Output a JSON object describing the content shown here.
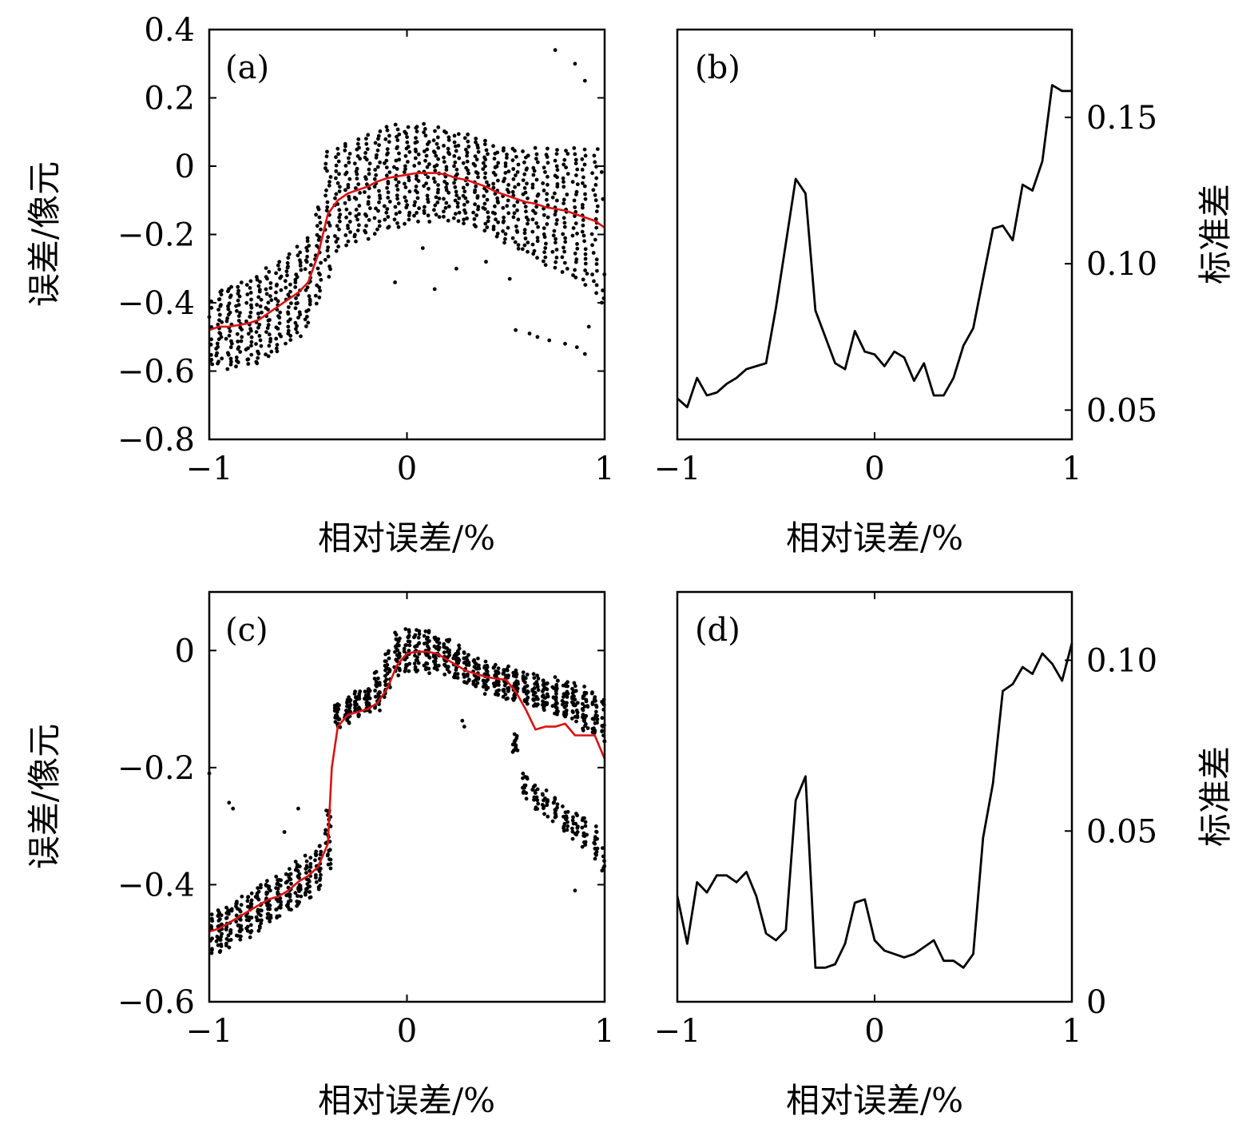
{
  "chart_data": [
    {
      "panel": "(a)",
      "type": "scatter",
      "xlabel": "相对误差/%",
      "ylabel": "误差/像元",
      "xlim": [
        -1,
        1
      ],
      "ylim": [
        -0.8,
        0.4
      ],
      "xticks": [
        -1,
        0,
        1
      ],
      "xtick_labels": [
        "−1",
        "0",
        "1"
      ],
      "yticks": [
        -0.8,
        -0.6,
        -0.4,
        -0.2,
        0,
        0.2,
        0.4
      ],
      "ytick_labels": [
        "−0.8",
        "−0.6",
        "−0.4",
        "−0.2",
        "0",
        "0.2",
        "0.4"
      ],
      "scatter_color": "#000000",
      "scatter_columns": {
        "x": [
          -1.0,
          -0.95,
          -0.9,
          -0.85,
          -0.8,
          -0.75,
          -0.7,
          -0.65,
          -0.6,
          -0.55,
          -0.5,
          -0.45,
          -0.4,
          -0.35,
          -0.3,
          -0.25,
          -0.2,
          -0.15,
          -0.1,
          -0.05,
          0.0,
          0.05,
          0.1,
          0.15,
          0.2,
          0.25,
          0.3,
          0.35,
          0.4,
          0.45,
          0.5,
          0.55,
          0.6,
          0.65,
          0.7,
          0.75,
          0.8,
          0.85,
          0.9,
          0.95,
          1.0
        ],
        "center": [
          -0.48,
          -0.47,
          -0.47,
          -0.465,
          -0.46,
          -0.45,
          -0.43,
          -0.41,
          -0.39,
          -0.37,
          -0.34,
          -0.26,
          -0.14,
          -0.1,
          -0.08,
          -0.07,
          -0.06,
          -0.045,
          -0.035,
          -0.03,
          -0.025,
          -0.02,
          -0.02,
          -0.02,
          -0.025,
          -0.035,
          -0.04,
          -0.05,
          -0.06,
          -0.075,
          -0.085,
          -0.095,
          -0.105,
          -0.11,
          -0.12,
          -0.125,
          -0.13,
          -0.14,
          -0.15,
          -0.16,
          -0.18
        ],
        "half_width": [
          0.11,
          0.11,
          0.12,
          0.12,
          0.12,
          0.13,
          0.13,
          0.13,
          0.13,
          0.13,
          0.13,
          0.14,
          0.18,
          0.15,
          0.15,
          0.15,
          0.15,
          0.15,
          0.15,
          0.15,
          0.14,
          0.14,
          0.14,
          0.13,
          0.13,
          0.13,
          0.13,
          0.13,
          0.13,
          0.13,
          0.14,
          0.15,
          0.15,
          0.16,
          0.17,
          0.17,
          0.18,
          0.19,
          0.2,
          0.21,
          0.22
        ]
      },
      "outliers": {
        "x": [
          -0.06,
          0.08,
          0.14,
          0.25,
          0.4,
          0.52,
          0.55,
          0.62,
          0.66,
          0.72,
          0.8,
          0.86,
          0.9,
          0.92,
          0.75,
          0.85,
          0.9
        ],
        "y": [
          -0.34,
          -0.24,
          -0.36,
          -0.3,
          -0.28,
          -0.33,
          -0.48,
          -0.49,
          -0.5,
          -0.51,
          -0.52,
          -0.53,
          -0.55,
          -0.47,
          0.34,
          0.3,
          0.25
        ]
      },
      "series": [
        {
          "name": "mean",
          "color": "#dd1111",
          "x": [
            -1.0,
            -0.95,
            -0.9,
            -0.85,
            -0.8,
            -0.75,
            -0.7,
            -0.65,
            -0.6,
            -0.55,
            -0.5,
            -0.45,
            -0.4,
            -0.35,
            -0.3,
            -0.25,
            -0.2,
            -0.15,
            -0.1,
            -0.05,
            0.0,
            0.05,
            0.1,
            0.15,
            0.2,
            0.25,
            0.3,
            0.35,
            0.4,
            0.45,
            0.5,
            0.55,
            0.6,
            0.65,
            0.7,
            0.75,
            0.8,
            0.85,
            0.9,
            0.95,
            1.0
          ],
          "y": [
            -0.48,
            -0.47,
            -0.47,
            -0.465,
            -0.46,
            -0.45,
            -0.43,
            -0.41,
            -0.39,
            -0.37,
            -0.34,
            -0.26,
            -0.14,
            -0.1,
            -0.08,
            -0.07,
            -0.06,
            -0.045,
            -0.035,
            -0.03,
            -0.025,
            -0.02,
            -0.02,
            -0.02,
            -0.025,
            -0.035,
            -0.04,
            -0.05,
            -0.06,
            -0.075,
            -0.085,
            -0.095,
            -0.105,
            -0.11,
            -0.12,
            -0.125,
            -0.13,
            -0.14,
            -0.15,
            -0.16,
            -0.18
          ]
        }
      ]
    },
    {
      "panel": "(b)",
      "type": "line",
      "xlabel": "相对误差/%",
      "ylabel": "标准差",
      "xlim": [
        -1,
        1
      ],
      "ylim": [
        0.04,
        0.18
      ],
      "xticks": [
        -1,
        0,
        1
      ],
      "xtick_labels": [
        "−1",
        "0",
        "1"
      ],
      "yticks": [
        0.05,
        0.1,
        0.15
      ],
      "ytick_labels": [
        "0.05",
        "0.10",
        "0.15"
      ],
      "series": [
        {
          "name": "std",
          "color": "#000000",
          "x": [
            -1.0,
            -0.95,
            -0.9,
            -0.85,
            -0.8,
            -0.75,
            -0.7,
            -0.65,
            -0.6,
            -0.55,
            -0.5,
            -0.45,
            -0.4,
            -0.35,
            -0.3,
            -0.25,
            -0.2,
            -0.15,
            -0.1,
            -0.05,
            0.0,
            0.05,
            0.1,
            0.15,
            0.2,
            0.25,
            0.3,
            0.35,
            0.4,
            0.45,
            0.5,
            0.55,
            0.6,
            0.65,
            0.7,
            0.75,
            0.8,
            0.85,
            0.9,
            0.95,
            1.0
          ],
          "y": [
            0.054,
            0.051,
            0.061,
            0.055,
            0.056,
            0.059,
            0.061,
            0.064,
            0.065,
            0.066,
            0.085,
            0.107,
            0.129,
            0.124,
            0.084,
            0.075,
            0.066,
            0.064,
            0.077,
            0.07,
            0.069,
            0.065,
            0.07,
            0.068,
            0.06,
            0.066,
            0.055,
            0.055,
            0.061,
            0.072,
            0.078,
            0.095,
            0.112,
            0.113,
            0.108,
            0.127,
            0.125,
            0.135,
            0.161,
            0.159,
            0.159
          ]
        }
      ]
    },
    {
      "panel": "(c)",
      "type": "scatter",
      "xlabel": "相对误差/%",
      "ylabel": "误差/像元",
      "xlim": [
        -1,
        1
      ],
      "ylim": [
        -0.6,
        0.1
      ],
      "xticks": [
        -1,
        0,
        1
      ],
      "xtick_labels": [
        "−1",
        "0",
        "1"
      ],
      "yticks": [
        -0.6,
        -0.4,
        -0.2,
        0
      ],
      "ytick_labels": [
        "−0.6",
        "−0.4",
        "−0.2",
        "0"
      ],
      "scatter_color": "#000000",
      "scatter_columns": {
        "x": [
          -1.0,
          -0.95,
          -0.9,
          -0.85,
          -0.8,
          -0.75,
          -0.7,
          -0.65,
          -0.6,
          -0.55,
          -0.5,
          -0.45,
          -0.4,
          -0.35,
          -0.3,
          -0.25,
          -0.2,
          -0.15,
          -0.1,
          -0.05,
          0.0,
          0.05,
          0.1,
          0.15,
          0.2,
          0.25,
          0.3,
          0.35,
          0.4,
          0.45,
          0.5,
          0.55,
          0.6,
          0.65,
          0.7,
          0.75,
          0.8,
          0.85,
          0.9,
          0.95,
          1.0
        ],
        "center": [
          -0.49,
          -0.48,
          -0.47,
          -0.46,
          -0.45,
          -0.44,
          -0.43,
          -0.42,
          -0.41,
          -0.4,
          -0.39,
          -0.37,
          -0.32,
          -0.11,
          -0.1,
          -0.09,
          -0.085,
          -0.07,
          -0.04,
          -0.005,
          0.0,
          0.0,
          0.0,
          -0.005,
          -0.01,
          -0.02,
          -0.03,
          -0.04,
          -0.045,
          -0.05,
          -0.055,
          -0.06,
          -0.065,
          -0.07,
          -0.075,
          -0.08,
          -0.085,
          -0.09,
          -0.1,
          -0.11,
          -0.12
        ],
        "half_width": [
          0.035,
          0.035,
          0.035,
          0.035,
          0.035,
          0.035,
          0.035,
          0.035,
          0.035,
          0.035,
          0.035,
          0.035,
          0.05,
          0.02,
          0.02,
          0.02,
          0.02,
          0.03,
          0.035,
          0.035,
          0.035,
          0.035,
          0.035,
          0.03,
          0.03,
          0.025,
          0.025,
          0.025,
          0.025,
          0.025,
          0.025,
          0.025,
          0.025,
          0.025,
          0.025,
          0.03,
          0.03,
          0.03,
          0.035,
          0.035,
          0.04
        ]
      },
      "second_branch": {
        "x": [
          0.55,
          0.6,
          0.65,
          0.7,
          0.75,
          0.8,
          0.85,
          0.9,
          0.95,
          1.0
        ],
        "center": [
          -0.16,
          -0.23,
          -0.25,
          -0.26,
          -0.27,
          -0.29,
          -0.3,
          -0.31,
          -0.33,
          -0.35
        ],
        "half_width": [
          0.015,
          0.02,
          0.02,
          0.02,
          0.02,
          0.02,
          0.02,
          0.025,
          0.025,
          0.025
        ]
      },
      "outliers": {
        "x": [
          -1.0,
          -0.9,
          -0.88,
          -0.62,
          -0.55,
          0.29,
          0.28,
          0.85
        ],
        "y": [
          -0.21,
          -0.26,
          -0.27,
          -0.31,
          -0.27,
          -0.13,
          -0.12,
          -0.41
        ]
      },
      "series": [
        {
          "name": "mean",
          "color": "#dd1111",
          "x": [
            -1.0,
            -0.95,
            -0.9,
            -0.85,
            -0.8,
            -0.75,
            -0.7,
            -0.65,
            -0.6,
            -0.55,
            -0.5,
            -0.45,
            -0.4,
            -0.38,
            -0.35,
            -0.3,
            -0.25,
            -0.2,
            -0.15,
            -0.1,
            -0.05,
            0.0,
            0.05,
            0.1,
            0.15,
            0.2,
            0.25,
            0.3,
            0.35,
            0.4,
            0.45,
            0.5,
            0.55,
            0.6,
            0.65,
            0.7,
            0.75,
            0.8,
            0.85,
            0.9,
            0.95,
            1.0
          ],
          "y": [
            -0.48,
            -0.475,
            -0.465,
            -0.455,
            -0.445,
            -0.435,
            -0.425,
            -0.42,
            -0.41,
            -0.395,
            -0.385,
            -0.37,
            -0.33,
            -0.2,
            -0.13,
            -0.11,
            -0.105,
            -0.1,
            -0.09,
            -0.065,
            -0.025,
            -0.005,
            -0.002,
            -0.002,
            -0.005,
            -0.015,
            -0.025,
            -0.035,
            -0.04,
            -0.045,
            -0.048,
            -0.05,
            -0.07,
            -0.1,
            -0.135,
            -0.13,
            -0.13,
            -0.125,
            -0.145,
            -0.145,
            -0.145,
            -0.185
          ]
        }
      ]
    },
    {
      "panel": "(d)",
      "type": "line",
      "xlabel": "相对误差/%",
      "ylabel": "标准差",
      "xlim": [
        -1,
        1
      ],
      "ylim": [
        0,
        0.12
      ],
      "xticks": [
        -1,
        0,
        1
      ],
      "xtick_labels": [
        "−1",
        "0",
        "1"
      ],
      "yticks": [
        0,
        0.05,
        0.1
      ],
      "ytick_labels": [
        "0",
        "0.05",
        "0.10"
      ],
      "series": [
        {
          "name": "std",
          "color": "#000000",
          "x": [
            -1.0,
            -0.95,
            -0.9,
            -0.85,
            -0.8,
            -0.75,
            -0.7,
            -0.65,
            -0.6,
            -0.55,
            -0.5,
            -0.45,
            -0.4,
            -0.35,
            -0.3,
            -0.25,
            -0.2,
            -0.15,
            -0.1,
            -0.05,
            0.0,
            0.05,
            0.1,
            0.15,
            0.2,
            0.25,
            0.3,
            0.35,
            0.4,
            0.45,
            0.5,
            0.55,
            0.6,
            0.65,
            0.7,
            0.75,
            0.8,
            0.85,
            0.9,
            0.95,
            1.0
          ],
          "y": [
            0.031,
            0.017,
            0.035,
            0.032,
            0.037,
            0.037,
            0.035,
            0.038,
            0.031,
            0.02,
            0.018,
            0.021,
            0.059,
            0.066,
            0.01,
            0.01,
            0.011,
            0.017,
            0.029,
            0.03,
            0.018,
            0.015,
            0.014,
            0.013,
            0.014,
            0.016,
            0.018,
            0.012,
            0.012,
            0.01,
            0.014,
            0.048,
            0.064,
            0.091,
            0.093,
            0.098,
            0.096,
            0.102,
            0.099,
            0.094,
            0.105
          ]
        }
      ]
    }
  ]
}
